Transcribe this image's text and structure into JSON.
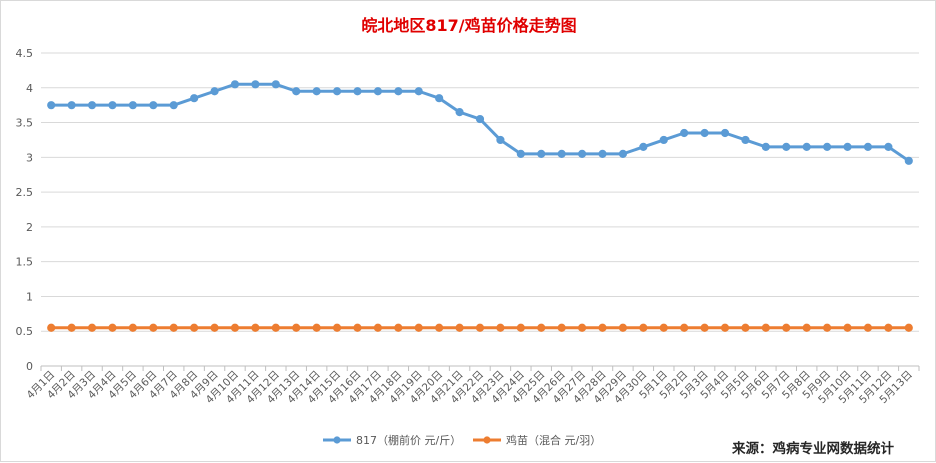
{
  "chart_data": {
    "type": "line",
    "title": "皖北地区817/鸡苗价格走势图",
    "source": "来源：鸡病专业网数据统计",
    "ylim": [
      0,
      4.5
    ],
    "y_ticks": [
      "0",
      "0.5",
      "1",
      "1.5",
      "2",
      "2.5",
      "3",
      "3.5",
      "4",
      "4.5"
    ],
    "categories": [
      "4月1日",
      "4月2日",
      "4月3日",
      "4月4日",
      "4月5日",
      "4月6日",
      "4月7日",
      "4月8日",
      "4月9日",
      "4月10日",
      "4月11日",
      "4月12日",
      "4月13日",
      "4月14日",
      "4月15日",
      "4月16日",
      "4月17日",
      "4月18日",
      "4月19日",
      "4月20日",
      "4月21日",
      "4月22日",
      "4月23日",
      "4月24日",
      "4月25日",
      "4月26日",
      "4月27日",
      "4月28日",
      "4月29日",
      "4月30日",
      "5月1日",
      "5月2日",
      "5月3日",
      "5月4日",
      "5月5日",
      "5月6日",
      "5月7日",
      "5月8日",
      "5月9日",
      "5月10日",
      "5月11日",
      "5月12日",
      "5月13日"
    ],
    "grid": true,
    "legend_position": "bottom",
    "series": [
      {
        "name": "817（棚前价 元/斤）",
        "color": "#5b9bd5",
        "values": [
          3.75,
          3.75,
          3.75,
          3.75,
          3.75,
          3.75,
          3.75,
          3.85,
          3.95,
          4.05,
          4.05,
          4.05,
          3.95,
          3.95,
          3.95,
          3.95,
          3.95,
          3.95,
          3.95,
          3.85,
          3.65,
          3.55,
          3.25,
          3.05,
          3.05,
          3.05,
          3.05,
          3.05,
          3.05,
          3.15,
          3.25,
          3.35,
          3.35,
          3.35,
          3.25,
          3.15,
          3.15,
          3.15,
          3.15,
          3.15,
          3.15,
          3.15,
          2.95
        ]
      },
      {
        "name": "鸡苗（混合 元/羽）",
        "color": "#ed7d31",
        "values": [
          0.55,
          0.55,
          0.55,
          0.55,
          0.55,
          0.55,
          0.55,
          0.55,
          0.55,
          0.55,
          0.55,
          0.55,
          0.55,
          0.55,
          0.55,
          0.55,
          0.55,
          0.55,
          0.55,
          0.55,
          0.55,
          0.55,
          0.55,
          0.55,
          0.55,
          0.55,
          0.55,
          0.55,
          0.55,
          0.55,
          0.55,
          0.55,
          0.55,
          0.55,
          0.55,
          0.55,
          0.55,
          0.55,
          0.55,
          0.55,
          0.55,
          0.55,
          0.55
        ]
      }
    ]
  }
}
